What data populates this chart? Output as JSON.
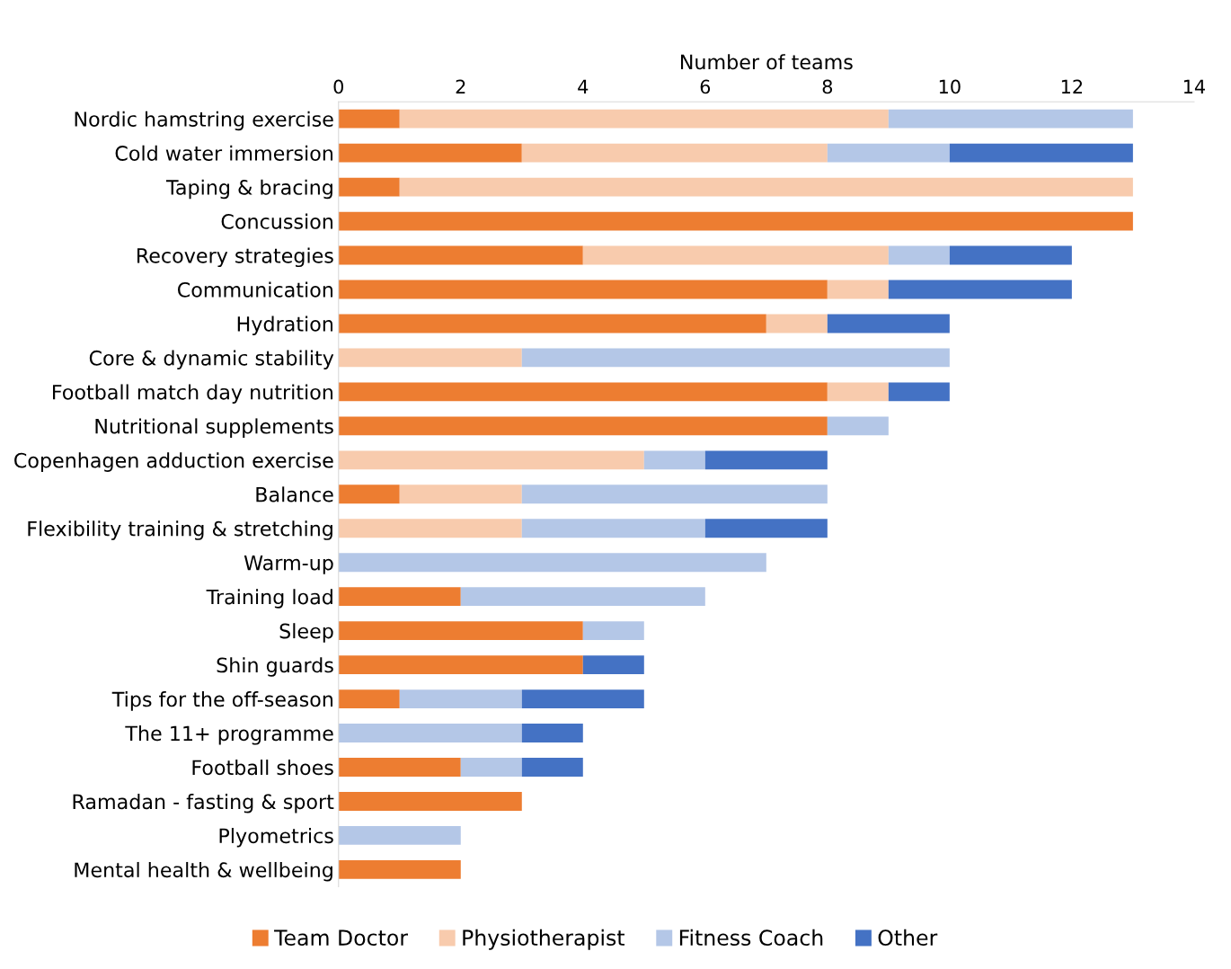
{
  "chart_data": {
    "type": "bar",
    "orientation": "horizontal",
    "stacked": true,
    "xlabel": "Number of teams",
    "categories": [
      "Nordic hamstring exercise",
      "Cold water immersion",
      "Taping & bracing",
      "Concussion",
      "Recovery strategies",
      "Communication",
      "Hydration",
      "Core & dynamic stability",
      "Football match day nutrition",
      "Nutritional supplements",
      "Copenhagen adduction exercise",
      "Balance",
      "Flexibility training & stretching",
      "Warm-up",
      "Training load",
      "Sleep",
      "Shin guards",
      "Tips for the off-season",
      "The 11+ programme",
      "Football shoes",
      "Ramadan - fasting & sport",
      "Plyometrics",
      "Mental health & wellbeing"
    ],
    "series": [
      {
        "name": "Team Doctor",
        "color": "#ed7d31",
        "values": [
          1,
          3,
          1,
          13,
          4,
          8,
          7,
          0,
          8,
          8,
          0,
          1,
          0,
          0,
          2,
          4,
          4,
          1,
          0,
          2,
          3,
          0,
          2
        ]
      },
      {
        "name": "Physiotherapist",
        "color": "#f8cbad",
        "values": [
          8,
          5,
          12,
          0,
          5,
          1,
          1,
          3,
          1,
          0,
          5,
          2,
          3,
          0,
          0,
          0,
          0,
          0,
          0,
          0,
          0,
          0,
          0
        ]
      },
      {
        "name": "Fitness Coach",
        "color": "#b4c7e7",
        "values": [
          4,
          2,
          0,
          0,
          1,
          0,
          0,
          7,
          0,
          1,
          1,
          5,
          3,
          7,
          4,
          1,
          0,
          2,
          3,
          1,
          0,
          2,
          0
        ]
      },
      {
        "name": "Other",
        "color": "#4472c4",
        "values": [
          0,
          3,
          0,
          0,
          2,
          3,
          2,
          0,
          1,
          0,
          2,
          0,
          2,
          0,
          0,
          0,
          1,
          2,
          1,
          1,
          0,
          0,
          0
        ]
      }
    ],
    "xlim": [
      0,
      14
    ],
    "xticks": [
      0,
      2,
      4,
      6,
      8,
      10,
      12,
      14
    ],
    "grid": false,
    "legend": "bottom"
  }
}
